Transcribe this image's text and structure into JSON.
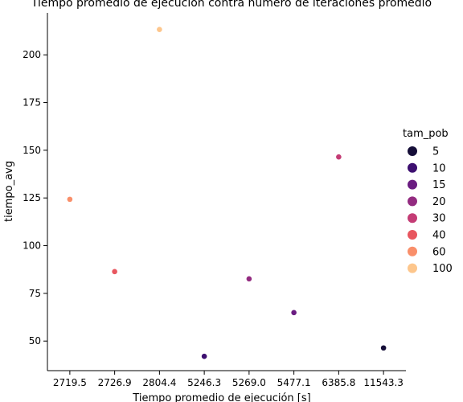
{
  "chart_data": {
    "type": "scatter",
    "title": "Tiempo promedio de ejecución contra número de iteraciones promedio",
    "xlabel": "Tiempo promedio de ejecución [s]",
    "ylabel": "tiempo_avg",
    "x_categories": [
      "2719.5",
      "2726.9",
      "2804.4",
      "5246.3",
      "5269.0",
      "5477.1",
      "6385.8",
      "11543.3"
    ],
    "ylim": [
      34.5,
      222
    ],
    "yticks": [
      50,
      75,
      100,
      125,
      150,
      175,
      200
    ],
    "legend": {
      "title": "tam_pob",
      "placement": "right",
      "entries": [
        {
          "label": "5",
          "color": "#150e38"
        },
        {
          "label": "10",
          "color": "#3d0f70"
        },
        {
          "label": "15",
          "color": "#6a1c81"
        },
        {
          "label": "20",
          "color": "#932b80"
        },
        {
          "label": "30",
          "color": "#c43c75"
        },
        {
          "label": "40",
          "color": "#e8565f"
        },
        {
          "label": "60",
          "color": "#f98f6a"
        },
        {
          "label": "100",
          "color": "#fdc68c"
        }
      ]
    },
    "points": [
      {
        "x": "2719.5",
        "y": 124.3,
        "tam_pob": "60"
      },
      {
        "x": "2726.9",
        "y": 86.4,
        "tam_pob": "40"
      },
      {
        "x": "2804.4",
        "y": 213.3,
        "tam_pob": "100"
      },
      {
        "x": "5246.3",
        "y": 42.0,
        "tam_pob": "10"
      },
      {
        "x": "5269.0",
        "y": 82.6,
        "tam_pob": "20"
      },
      {
        "x": "5477.1",
        "y": 64.9,
        "tam_pob": "15"
      },
      {
        "x": "6385.8",
        "y": 146.5,
        "tam_pob": "30"
      },
      {
        "x": "11543.3",
        "y": 46.4,
        "tam_pob": "5"
      }
    ]
  }
}
